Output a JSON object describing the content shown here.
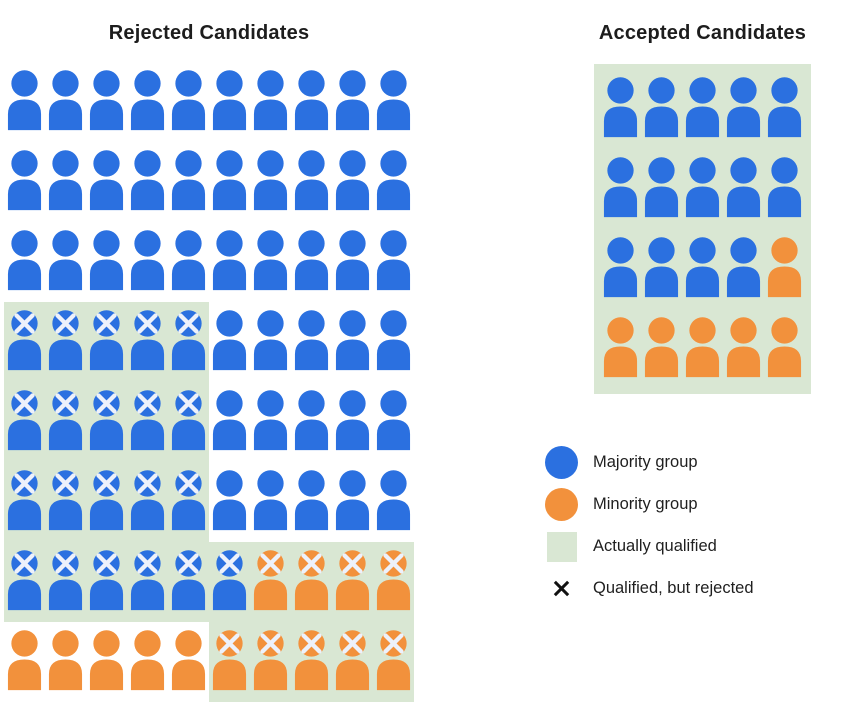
{
  "colors": {
    "page_bg": "#ffffff",
    "majority": "#2b70e0",
    "minority": "#f2913c",
    "qualified_bg": "#d9e7d3",
    "cross": "#edf1fb",
    "legend_x": "#111111",
    "title_text": "#1d1d1d"
  },
  "rejected": {
    "title": "Rejected Candidates",
    "columns": 10,
    "rows": [
      [
        "b",
        "b",
        "b",
        "b",
        "b",
        "b",
        "b",
        "b",
        "b",
        "b"
      ],
      [
        "b",
        "b",
        "b",
        "b",
        "b",
        "b",
        "b",
        "b",
        "b",
        "b"
      ],
      [
        "b",
        "b",
        "b",
        "b",
        "b",
        "b",
        "b",
        "b",
        "b",
        "b"
      ],
      [
        "bxq",
        "bxq",
        "bxq",
        "bxq",
        "bxq",
        "b",
        "b",
        "b",
        "b",
        "b"
      ],
      [
        "bxq",
        "bxq",
        "bxq",
        "bxq",
        "bxq",
        "b",
        "b",
        "b",
        "b",
        "b"
      ],
      [
        "bxq",
        "bxq",
        "bxq",
        "bxq",
        "bxq",
        "b",
        "b",
        "b",
        "b",
        "b"
      ],
      [
        "bxq",
        "bxq",
        "bxq",
        "bxq",
        "bxq",
        "bxq",
        "oxq",
        "oxq",
        "oxq",
        "oxq"
      ],
      [
        "o",
        "o",
        "o",
        "o",
        "o",
        "oxq",
        "oxq",
        "oxq",
        "oxq",
        "oxq"
      ]
    ]
  },
  "accepted": {
    "title": "Accepted Candidates",
    "columns": 5,
    "rows": [
      [
        "bq",
        "bq",
        "bq",
        "bq",
        "bq"
      ],
      [
        "bq",
        "bq",
        "bq",
        "bq",
        "bq"
      ],
      [
        "bq",
        "bq",
        "bq",
        "bq",
        "oq"
      ],
      [
        "oq",
        "oq",
        "oq",
        "oq",
        "oq"
      ]
    ]
  },
  "legend": {
    "items": [
      {
        "swatch": "majority-circle",
        "label": "Majority group"
      },
      {
        "swatch": "minority-circle",
        "label": "Minority group"
      },
      {
        "swatch": "qualified-square",
        "label": "Actually qualified"
      },
      {
        "swatch": "rejected-x",
        "label": "Qualified, but rejected"
      }
    ]
  }
}
